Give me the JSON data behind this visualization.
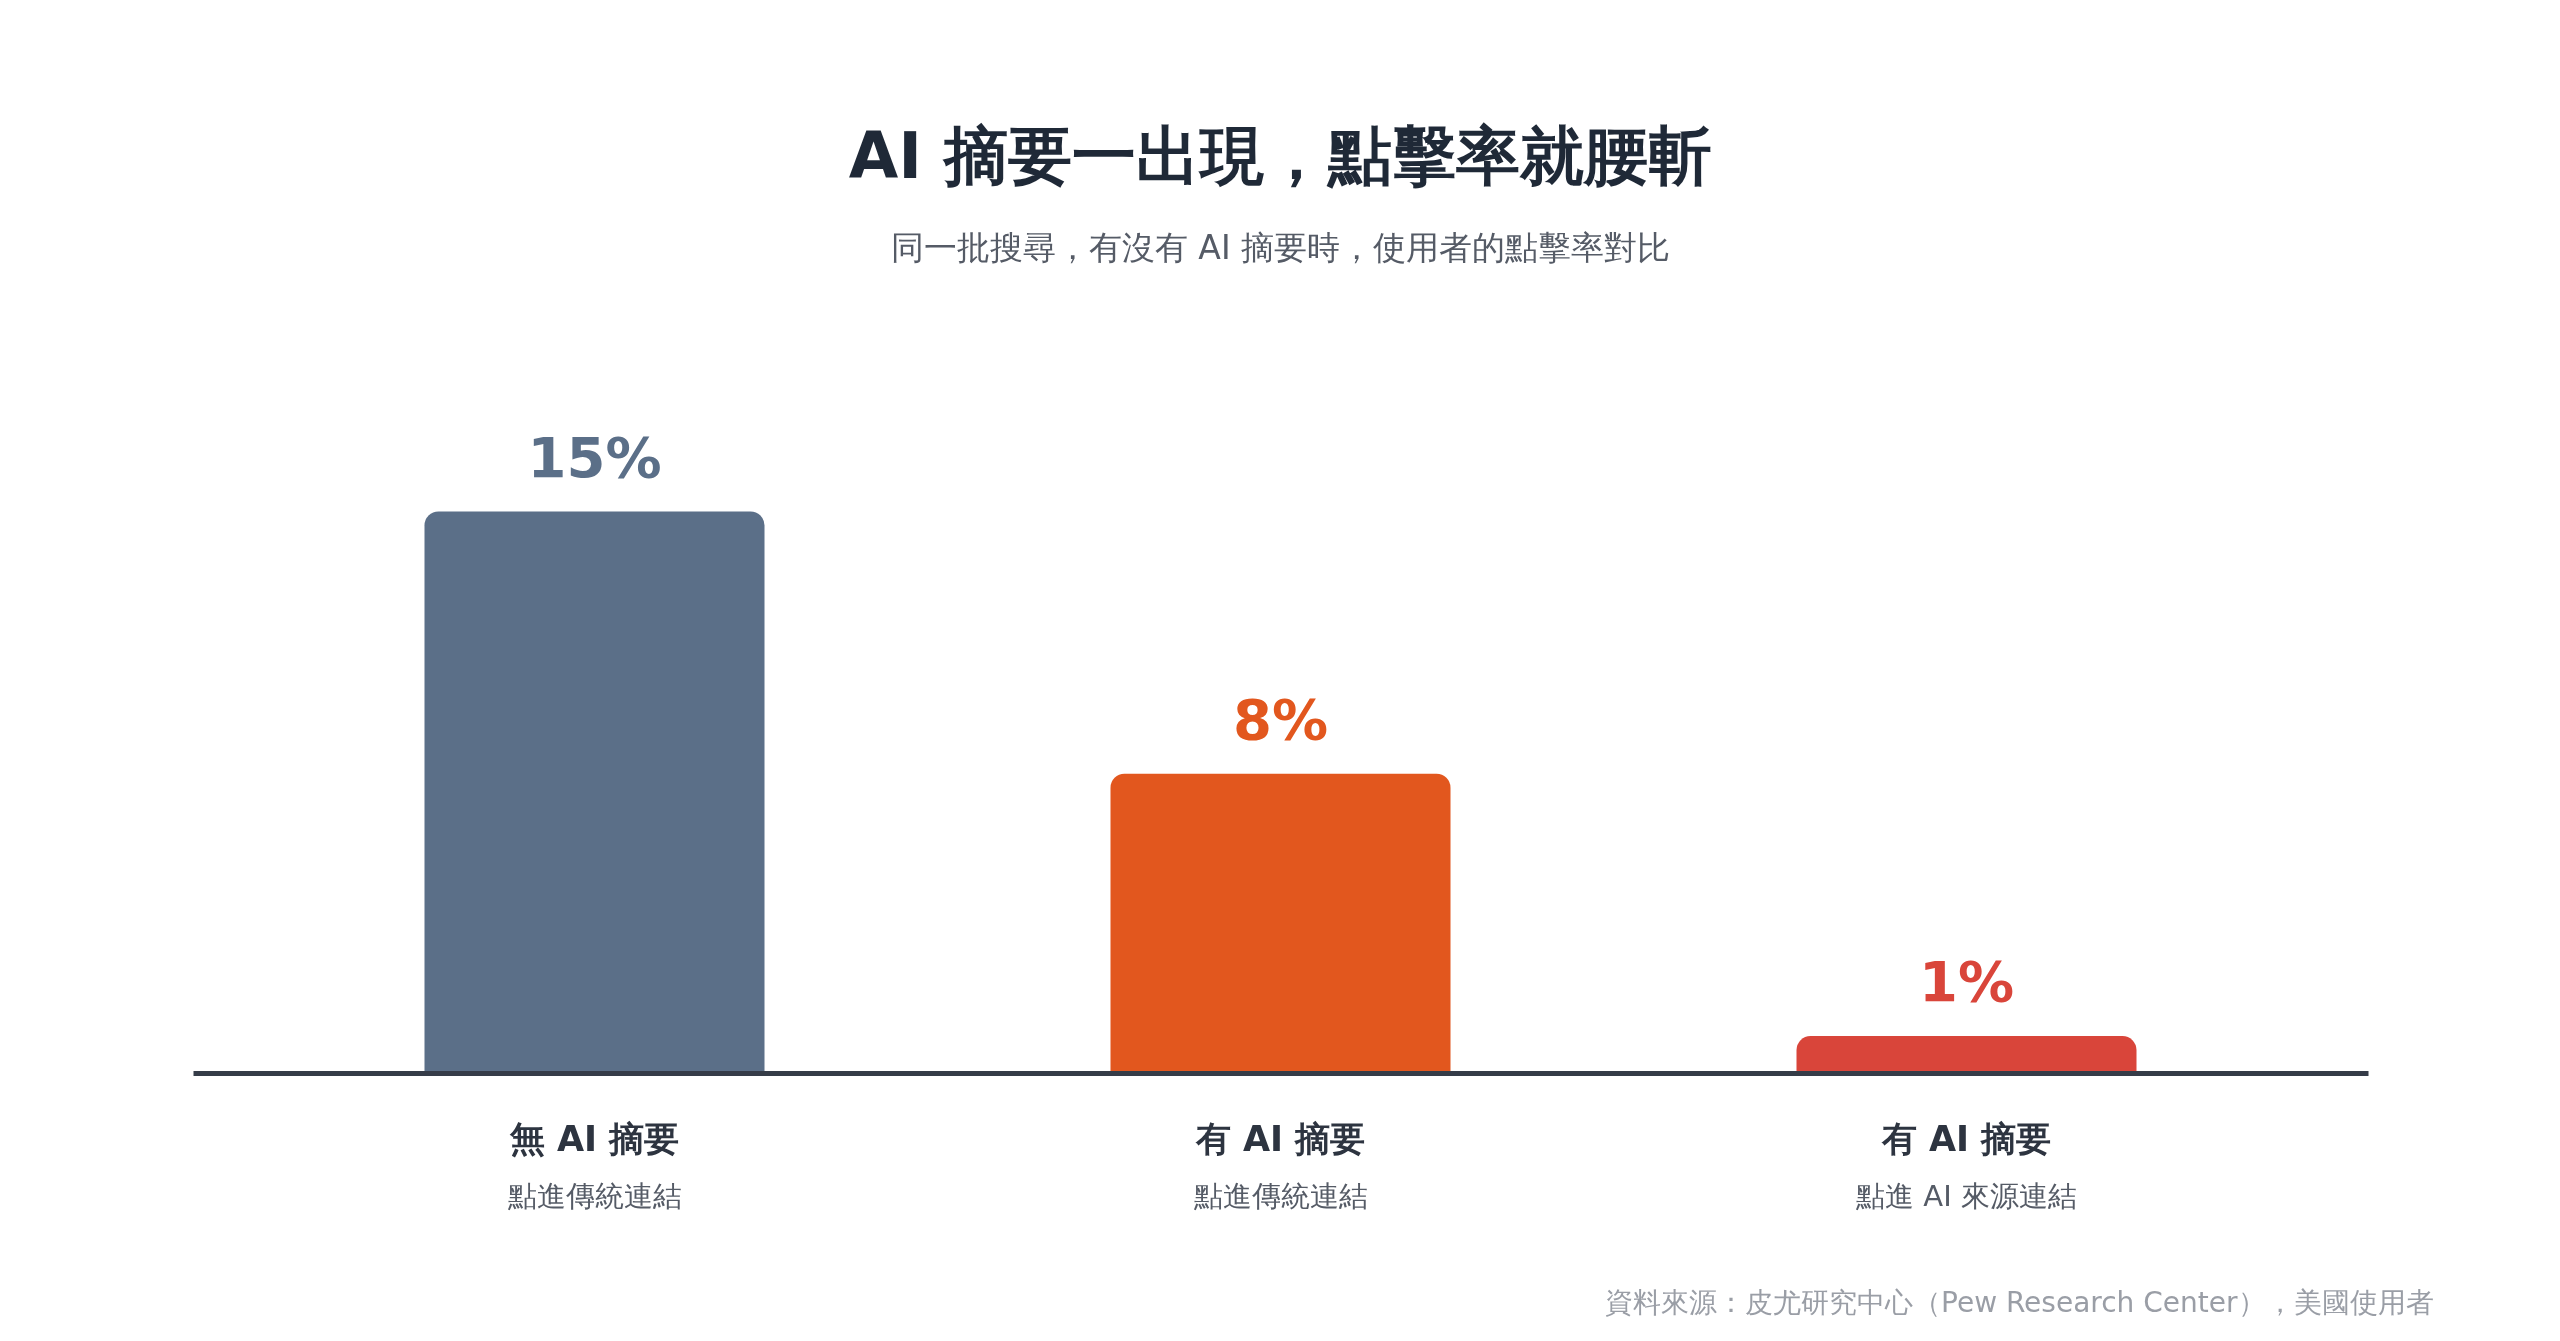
{
  "chart_data": {
    "type": "bar",
    "title": "AI 摘要一出現，點擊率就腰斬",
    "subtitle": "同一批搜尋，有沒有 AI 摘要時，使用者的點擊率對比",
    "categories": [
      "無 AI 摘要",
      "有 AI 摘要",
      "有 AI 摘要"
    ],
    "values": [
      15,
      8,
      1
    ],
    "colors": [
      "#5b6f88",
      "#e2571e",
      "#d9453a"
    ],
    "value_labels": [
      "15%",
      "8%",
      "1%"
    ],
    "annotations": [
      "點進傳統連結",
      "點進傳統連結",
      "點進 AI 來源連結",
      "資料來源：皮尤研究中心（Pew Research Center），美國使用者"
    ],
    "grid": false
  }
}
